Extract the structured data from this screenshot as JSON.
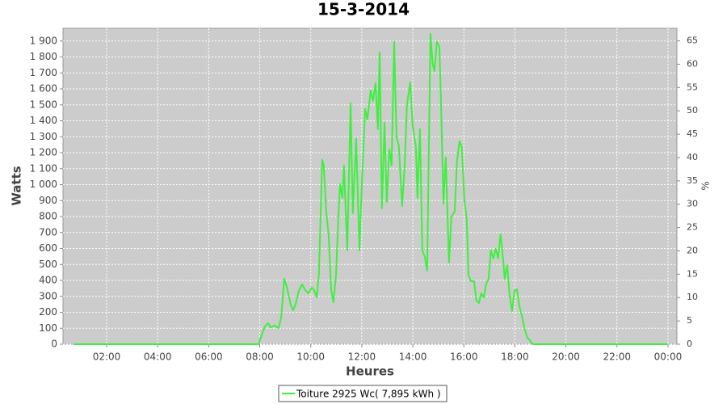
{
  "chart_data": {
    "type": "line",
    "title": "15-3-2014",
    "x_label": "Heures",
    "y_label": "Watts",
    "y2_label": "%",
    "x": [
      0.7,
      7.95,
      8.04,
      8.2,
      8.33,
      8.42,
      8.58,
      8.74,
      8.84,
      8.96,
      9.06,
      9.22,
      9.31,
      9.41,
      9.53,
      9.66,
      9.78,
      9.91,
      10.04,
      10.13,
      10.23,
      10.32,
      10.45,
      10.51,
      10.61,
      10.7,
      10.8,
      10.89,
      10.99,
      11.08,
      11.15,
      11.24,
      11.3,
      11.43,
      11.56,
      11.65,
      11.78,
      11.91,
      12.0,
      12.13,
      12.22,
      12.35,
      12.44,
      12.54,
      12.63,
      12.7,
      12.79,
      12.89,
      12.98,
      13.08,
      13.17,
      13.27,
      13.36,
      13.45,
      13.58,
      13.68,
      13.77,
      13.9,
      13.99,
      14.12,
      14.18,
      14.28,
      14.37,
      14.47,
      14.56,
      14.69,
      14.78,
      14.85,
      14.94,
      15.04,
      15.1,
      15.2,
      15.29,
      15.42,
      15.51,
      15.64,
      15.73,
      15.83,
      15.92,
      16.02,
      16.11,
      16.18,
      16.27,
      16.4,
      16.49,
      16.59,
      16.68,
      16.78,
      16.87,
      16.97,
      17.06,
      17.16,
      17.25,
      17.34,
      17.44,
      17.53,
      17.6,
      17.7,
      17.79,
      17.89,
      17.98,
      18.08,
      18.17,
      18.27,
      18.39,
      18.49,
      18.61,
      18.71,
      24.0
    ],
    "series": [
      {
        "name": "Toiture 2925 Wc( 7,895 kWh )",
        "color": "#3ef03e",
        "values": [
          0,
          0,
          41,
          111,
          132,
          106,
          117,
          101,
          167,
          410,
          360,
          243,
          213,
          253,
          334,
          375,
          340,
          319,
          355,
          340,
          294,
          436,
          1155,
          1120,
          821,
          689,
          340,
          263,
          436,
          790,
          1003,
          917,
          1120,
          588,
          1510,
          821,
          1287,
          588,
          993,
          1474,
          1408,
          1591,
          1525,
          1636,
          1348,
          1829,
          851,
          1388,
          892,
          1221,
          1120,
          1895,
          1297,
          1246,
          866,
          1120,
          1499,
          1641,
          1373,
          1236,
          917,
          1348,
          588,
          547,
          461,
          1945,
          1753,
          1712,
          1895,
          1864,
          1550,
          881,
          1170,
          512,
          800,
          831,
          1145,
          1272,
          1236,
          902,
          790,
          436,
          395,
          395,
          274,
          258,
          319,
          294,
          375,
          410,
          588,
          537,
          598,
          537,
          689,
          547,
          410,
          496,
          309,
          208,
          334,
          344,
          243,
          182,
          91,
          41,
          20,
          0,
          0
        ]
      }
    ],
    "xlim": [
      0.29,
      24.35
    ],
    "xticks": [
      {
        "value": 2,
        "label": "02:00"
      },
      {
        "value": 4,
        "label": "04:00"
      },
      {
        "value": 6,
        "label": "06:00"
      },
      {
        "value": 8,
        "label": "08:00"
      },
      {
        "value": 10,
        "label": "10:00"
      },
      {
        "value": 12,
        "label": "12:00"
      },
      {
        "value": 14,
        "label": "14:00"
      },
      {
        "value": 16,
        "label": "16:00"
      },
      {
        "value": 18,
        "label": "18:00"
      },
      {
        "value": 20,
        "label": "20:00"
      },
      {
        "value": 22,
        "label": "22:00"
      },
      {
        "value": 24,
        "label": "00:00"
      }
    ],
    "ylim": [
      0,
      1980
    ],
    "yticks": [
      0,
      100,
      200,
      300,
      400,
      500,
      600,
      700,
      800,
      900,
      {
        "value": 1000,
        "label": "1 000"
      },
      {
        "value": 1100,
        "label": "1 100"
      },
      {
        "value": 1200,
        "label": "1 200"
      },
      {
        "value": 1300,
        "label": "1 300"
      },
      {
        "value": 1400,
        "label": "1 400"
      },
      {
        "value": 1500,
        "label": "1 500"
      },
      {
        "value": 1600,
        "label": "1 600"
      },
      {
        "value": 1700,
        "label": "1 700"
      },
      {
        "value": 1800,
        "label": "1 800"
      },
      {
        "value": 1900,
        "label": "1 900"
      }
    ],
    "y2lim": [
      0,
      67.7
    ],
    "y2ticks": [
      0,
      5,
      10,
      15,
      20,
      25,
      30,
      35,
      40,
      45,
      50,
      55,
      60,
      65
    ],
    "grid": true
  }
}
